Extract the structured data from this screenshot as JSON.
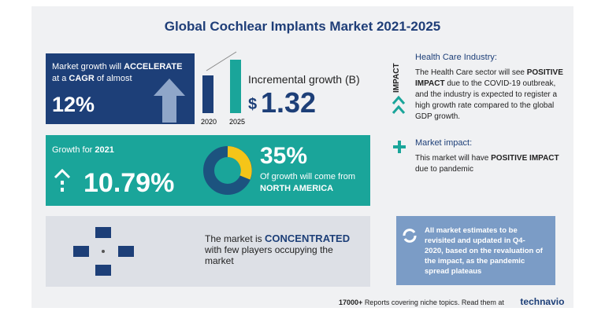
{
  "title": "Global Cochlear Implants Market 2021-2025",
  "growth_box": {
    "line1_prefix": "Market growth will",
    "line1_strong": "ACCELERATE",
    "line2_prefix": "at a",
    "line2_strong": "CAGR",
    "line2_suffix": "of almost",
    "value": "12%"
  },
  "incremental": {
    "years": [
      "2020",
      "2025"
    ],
    "label": "Incremental growth (B)",
    "currency": "$",
    "value": "1.32"
  },
  "growth_2021": {
    "label": "Growth for",
    "year": "2021",
    "value": "10.79%"
  },
  "region": {
    "value": "35%",
    "text": "Of growth will come from",
    "region": "NORTH AMERICA"
  },
  "concentration": {
    "prefix": "The market is",
    "strong": "CONCENTRATED",
    "suffix": "with few players occupying the market"
  },
  "impact": {
    "tag": "IMPACT",
    "industry_title": "Health Care Industry:",
    "industry_prefix": "The Health Care sector will see",
    "industry_strong": "POSITIVE IMPACT",
    "industry_suffix": "due to the COVID-19 outbreak, and the industry is expected to register a high growth rate compared to the global GDP growth.",
    "market_title": "Market impact:",
    "market_prefix": "This market will have",
    "market_strong": "POSITIVE IMPACT",
    "market_suffix": "due to pandemic"
  },
  "note": "All market estimates to be revisited and updated in Q4-2020, based on the revaluation of the impact, as the pandemic spread plateaus",
  "footer": {
    "count": "17000+",
    "text": "Reports covering niche topics. Read them at",
    "brand": "technavio"
  }
}
